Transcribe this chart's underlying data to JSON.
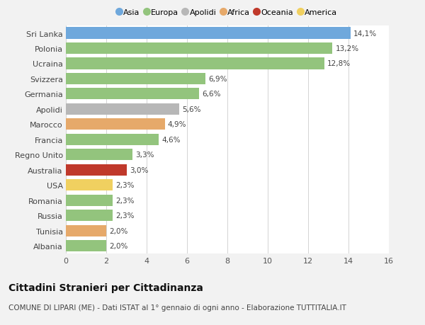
{
  "categories": [
    "Sri Lanka",
    "Polonia",
    "Ucraina",
    "Svizzera",
    "Germania",
    "Apolidi",
    "Marocco",
    "Francia",
    "Regno Unito",
    "Australia",
    "USA",
    "Romania",
    "Russia",
    "Tunisia",
    "Albania"
  ],
  "values": [
    14.1,
    13.2,
    12.8,
    6.9,
    6.6,
    5.6,
    4.9,
    4.6,
    3.3,
    3.0,
    2.3,
    2.3,
    2.3,
    2.0,
    2.0
  ],
  "labels": [
    "14,1%",
    "13,2%",
    "12,8%",
    "6,9%",
    "6,6%",
    "5,6%",
    "4,9%",
    "4,6%",
    "3,3%",
    "3,0%",
    "2,3%",
    "2,3%",
    "2,3%",
    "2,0%",
    "2,0%"
  ],
  "colors": [
    "#6fa8dc",
    "#93c47d",
    "#93c47d",
    "#93c47d",
    "#93c47d",
    "#b7b7b7",
    "#e6a96a",
    "#93c47d",
    "#93c47d",
    "#c0392b",
    "#f0d060",
    "#93c47d",
    "#93c47d",
    "#e6a96a",
    "#93c47d"
  ],
  "legend": [
    {
      "label": "Asia",
      "color": "#6fa8dc"
    },
    {
      "label": "Europa",
      "color": "#93c47d"
    },
    {
      "label": "Apolidi",
      "color": "#b7b7b7"
    },
    {
      "label": "Africa",
      "color": "#e6a96a"
    },
    {
      "label": "Oceania",
      "color": "#c0392b"
    },
    {
      "label": "America",
      "color": "#f0d060"
    }
  ],
  "title": "Cittadini Stranieri per Cittadinanza",
  "subtitle": "COMUNE DI LIPARI (ME) - Dati ISTAT al 1° gennaio di ogni anno - Elaborazione TUTTITALIA.IT",
  "xlim": [
    0,
    16
  ],
  "xticks": [
    0,
    2,
    4,
    6,
    8,
    10,
    12,
    14,
    16
  ],
  "background_color": "#f2f2f2",
  "plot_bg_color": "#ffffff",
  "bar_height": 0.75,
  "label_fontsize": 7.5,
  "tick_fontsize": 8,
  "title_fontsize": 10,
  "subtitle_fontsize": 7.5
}
